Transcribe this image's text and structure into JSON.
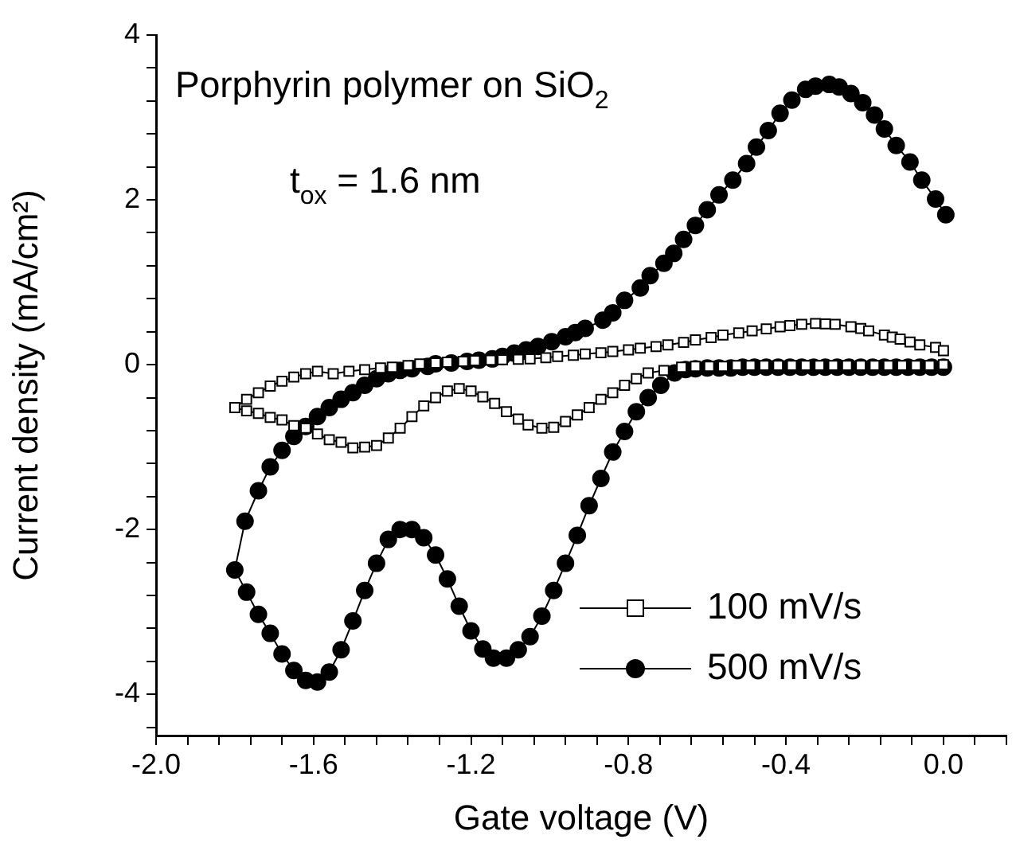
{
  "chart_data": {
    "type": "line",
    "xlabel": "Gate voltage (V)",
    "ylabel": "Current density (mA/cm²)",
    "annotations": [
      "Porphyrin polymer on SiO$_{2}$",
      "t$_{ox}$ = 1.6 nm"
    ],
    "xlim": [
      -2.0,
      0.16
    ],
    "ylim": [
      -4.5,
      4
    ],
    "xticks": [
      {
        "value": -2,
        "label": "-2.0"
      },
      {
        "value": -1.92,
        "label": null
      },
      {
        "value": -1.84,
        "label": null
      },
      {
        "value": -1.76,
        "label": null
      },
      {
        "value": -1.68,
        "label": null
      },
      {
        "value": -1.6,
        "label": "-1.6"
      },
      {
        "value": -1.52,
        "label": null
      },
      {
        "value": -1.44,
        "label": null
      },
      {
        "value": -1.36,
        "label": null
      },
      {
        "value": -1.28,
        "label": null
      },
      {
        "value": -1.2,
        "label": "-1.2"
      },
      {
        "value": -1.12,
        "label": null
      },
      {
        "value": -1.04,
        "label": null
      },
      {
        "value": -0.96,
        "label": null
      },
      {
        "value": -0.88,
        "label": null
      },
      {
        "value": -0.8,
        "label": "-0.8"
      },
      {
        "value": -0.72,
        "label": null
      },
      {
        "value": -0.64,
        "label": null
      },
      {
        "value": -0.56,
        "label": null
      },
      {
        "value": -0.48,
        "label": null
      },
      {
        "value": -0.4,
        "label": "-0.4"
      },
      {
        "value": -0.32,
        "label": null
      },
      {
        "value": -0.24,
        "label": null
      },
      {
        "value": -0.16,
        "label": null
      },
      {
        "value": -0.08,
        "label": null
      },
      {
        "value": 0,
        "label": "0.0"
      },
      {
        "value": 0.08,
        "label": null
      },
      {
        "value": 0.16,
        "label": null
      }
    ],
    "yticks": [
      {
        "value": -4.4,
        "label": null
      },
      -4,
      {
        "value": -3.6,
        "label": null
      },
      {
        "value": -3.2,
        "label": null
      },
      {
        "value": -2.8,
        "label": null
      },
      {
        "value": -2.4,
        "label": null
      },
      -2,
      {
        "value": -1.6,
        "label": null
      },
      {
        "value": -1.2,
        "label": null
      },
      {
        "value": -0.8,
        "label": null
      },
      {
        "value": -0.4,
        "label": null
      },
      0,
      {
        "value": 0.4,
        "label": null
      },
      {
        "value": 0.8,
        "label": null
      },
      {
        "value": 1.2,
        "label": null
      },
      {
        "value": 1.6,
        "label": null
      },
      2,
      {
        "value": 2.4,
        "label": null
      },
      {
        "value": 2.8,
        "label": null
      },
      {
        "value": 3.2,
        "label": null
      },
      {
        "value": 3.6,
        "label": null
      },
      4
    ],
    "grid": false,
    "legend": "bottom right",
    "line_style": "solid",
    "series": [
      {
        "name": "100 mV/s",
        "color": "#000000",
        "marker": "square",
        "x": [
          0,
          -0.035,
          -0.07,
          -0.105,
          -0.14,
          -0.175,
          -0.21,
          -0.245,
          -0.28,
          -0.315,
          -0.35,
          -0.385,
          -0.42,
          -0.455,
          -0.49,
          -0.525,
          -0.56,
          -0.595,
          -0.63,
          -0.665,
          -0.71,
          -0.75,
          -0.78,
          -0.81,
          -0.84,
          -0.87,
          -0.9,
          -0.93,
          -0.96,
          -0.99,
          -1.02,
          -1.055,
          -1.08,
          -1.11,
          -1.14,
          -1.17,
          -1.2,
          -1.23,
          -1.26,
          -1.29,
          -1.32,
          -1.35,
          -1.38,
          -1.41,
          -1.44,
          -1.47,
          -1.5,
          -1.53,
          -1.56,
          -1.59,
          -1.62,
          -1.65,
          -1.68,
          -1.71,
          -1.74,
          -1.77,
          -1.8,
          -1.77,
          -1.74,
          -1.71,
          -1.68,
          -1.65,
          -1.62,
          -1.59,
          -1.55,
          -1.51,
          -1.47,
          -1.43,
          -1.4,
          -1.36,
          -1.33,
          -1.29,
          -1.26,
          -1.22,
          -1.19,
          -1.15,
          -1.12,
          -1.08,
          -1.05,
          -1.01,
          -0.98,
          -0.94,
          -0.91,
          -0.87,
          -0.84,
          -0.8,
          -0.77,
          -0.73,
          -0.7,
          -0.66,
          -0.63,
          -0.59,
          -0.56,
          -0.52,
          -0.486,
          -0.45,
          -0.415,
          -0.39,
          -0.36,
          -0.325,
          -0.3,
          -0.275,
          -0.235,
          -0.21,
          -0.19,
          -0.15,
          -0.13,
          -0.11,
          -0.085,
          -0.06,
          -0.02,
          0
        ],
        "values": [
          0,
          -0.01,
          -0.01,
          -0.01,
          -0.01,
          -0.01,
          -0.01,
          -0.01,
          -0.01,
          -0.01,
          -0.01,
          -0.01,
          -0.01,
          -0.01,
          -0.01,
          -0.01,
          -0.02,
          -0.02,
          -0.02,
          -0.03,
          -0.07,
          -0.1,
          -0.17,
          -0.25,
          -0.34,
          -0.42,
          -0.52,
          -0.61,
          -0.69,
          -0.76,
          -0.77,
          -0.73,
          -0.66,
          -0.57,
          -0.47,
          -0.39,
          -0.32,
          -0.29,
          -0.32,
          -0.4,
          -0.5,
          -0.63,
          -0.77,
          -0.89,
          -0.98,
          -1.0,
          -1.01,
          -0.94,
          -0.91,
          -0.84,
          -0.77,
          -0.74,
          -0.67,
          -0.64,
          -0.59,
          -0.56,
          -0.52,
          -0.42,
          -0.34,
          -0.26,
          -0.2,
          -0.15,
          -0.11,
          -0.08,
          -0.11,
          -0.08,
          -0.06,
          -0.04,
          -0.03,
          -0.01,
          0.01,
          0.02,
          0.03,
          0.04,
          0.05,
          0.055,
          0.06,
          0.065,
          0.07,
          0.085,
          0.1,
          0.115,
          0.13,
          0.145,
          0.16,
          0.18,
          0.2,
          0.22,
          0.24,
          0.27,
          0.3,
          0.33,
          0.36,
          0.385,
          0.41,
          0.435,
          0.46,
          0.475,
          0.49,
          0.5,
          0.495,
          0.49,
          0.46,
          0.44,
          0.41,
          0.36,
          0.335,
          0.31,
          0.275,
          0.24,
          0.21,
          0.17
        ]
      },
      {
        "name": "500 mV/s",
        "color": "#000000",
        "marker": "circle",
        "x": [
          0,
          -0.03,
          -0.06,
          -0.09,
          -0.12,
          -0.15,
          -0.18,
          -0.21,
          -0.24,
          -0.27,
          -0.3,
          -0.33,
          -0.36,
          -0.39,
          -0.42,
          -0.45,
          -0.48,
          -0.51,
          -0.54,
          -0.57,
          -0.6,
          -0.63,
          -0.655,
          -0.683,
          -0.718,
          -0.75,
          -0.78,
          -0.81,
          -0.84,
          -0.87,
          -0.9,
          -0.93,
          -0.96,
          -0.99,
          -1.02,
          -1.05,
          -1.08,
          -1.11,
          -1.143,
          -1.17,
          -1.2,
          -1.23,
          -1.26,
          -1.29,
          -1.32,
          -1.35,
          -1.38,
          -1.41,
          -1.44,
          -1.47,
          -1.5,
          -1.53,
          -1.56,
          -1.59,
          -1.62,
          -1.65,
          -1.68,
          -1.71,
          -1.74,
          -1.77,
          -1.8,
          -1.774,
          -1.74,
          -1.71,
          -1.68,
          -1.65,
          -1.62,
          -1.59,
          -1.56,
          -1.53,
          -1.5,
          -1.47,
          -1.44,
          -1.41,
          -1.38,
          -1.35,
          -1.31,
          -1.29,
          -1.25,
          -1.21,
          -1.18,
          -1.146,
          -1.12,
          -1.09,
          -1.06,
          -1.03,
          -0.995,
          -0.96,
          -0.935,
          -0.91,
          -0.865,
          -0.84,
          -0.81,
          -0.77,
          -0.745,
          -0.71,
          -0.685,
          -0.66,
          -0.63,
          -0.6,
          -0.57,
          -0.535,
          -0.5,
          -0.475,
          -0.445,
          -0.415,
          -0.385,
          -0.35,
          -0.325,
          -0.29,
          -0.265,
          -0.235,
          -0.205,
          -0.175,
          -0.15,
          -0.12,
          -0.085,
          -0.055,
          -0.02,
          0.006
        ],
        "values": [
          -0.03,
          -0.03,
          -0.03,
          -0.03,
          -0.03,
          -0.03,
          -0.03,
          -0.03,
          -0.03,
          -0.03,
          -0.03,
          -0.03,
          -0.03,
          -0.03,
          -0.03,
          -0.03,
          -0.03,
          -0.03,
          -0.04,
          -0.04,
          -0.04,
          -0.05,
          -0.06,
          -0.1,
          -0.25,
          -0.4,
          -0.57,
          -0.81,
          -1.06,
          -1.38,
          -1.71,
          -2.07,
          -2.41,
          -2.74,
          -3.05,
          -3.3,
          -3.46,
          -3.56,
          -3.56,
          -3.45,
          -3.23,
          -2.93,
          -2.6,
          -2.31,
          -2.1,
          -2.0,
          -2.0,
          -2.12,
          -2.41,
          -2.74,
          -3.11,
          -3.46,
          -3.73,
          -3.85,
          -3.83,
          -3.71,
          -3.51,
          -3.26,
          -3.03,
          -2.76,
          -2.49,
          -1.9,
          -1.53,
          -1.24,
          -1.04,
          -0.87,
          -0.75,
          -0.63,
          -0.52,
          -0.42,
          -0.34,
          -0.25,
          -0.17,
          -0.11,
          -0.07,
          -0.05,
          -0.02,
          0.01,
          0.02,
          0.04,
          0.055,
          0.07,
          0.1,
          0.14,
          0.18,
          0.22,
          0.28,
          0.34,
          0.39,
          0.44,
          0.54,
          0.63,
          0.78,
          0.93,
          1.08,
          1.23,
          1.35,
          1.52,
          1.69,
          1.88,
          2.06,
          2.24,
          2.44,
          2.64,
          2.84,
          3.05,
          3.21,
          3.34,
          3.38,
          3.4,
          3.37,
          3.29,
          3.18,
          3.03,
          2.86,
          2.66,
          2.46,
          2.24,
          2.01,
          1.82
        ]
      }
    ]
  }
}
